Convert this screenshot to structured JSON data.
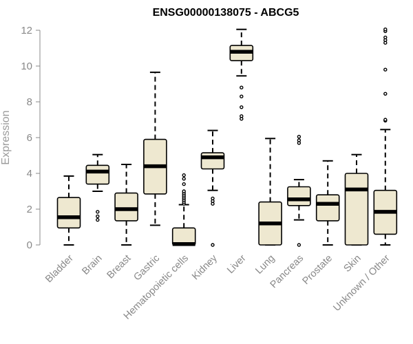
{
  "chart_data": {
    "type": "boxplot",
    "title": "ENSG00000138075 - ABCG5",
    "xlabel": "",
    "ylabel": "Expression",
    "ylim": [
      0,
      12
    ],
    "yticks": [
      0,
      2,
      4,
      6,
      8,
      10,
      12
    ],
    "grid": false,
    "legend": "none",
    "colors": {
      "box_fill": "#eee8d0",
      "stroke": "#000000",
      "axis": "#888888"
    },
    "categories": [
      "Bladder",
      "Brain",
      "Breast",
      "Gastric",
      "Hematopoietic cells",
      "Kidney",
      "Liver",
      "Lung",
      "Pancreas",
      "Prostate",
      "Skin",
      "Unknown / Other"
    ],
    "boxes": [
      {
        "category": "Bladder",
        "whisker_low": 0.0,
        "q1": 0.95,
        "median": 1.55,
        "q3": 2.65,
        "whisker_high": 3.85,
        "outliers": []
      },
      {
        "category": "Brain",
        "whisker_low": 3.0,
        "q1": 3.4,
        "median": 4.1,
        "q3": 4.45,
        "whisker_high": 5.05,
        "outliers": [
          1.4,
          1.6,
          1.85
        ]
      },
      {
        "category": "Breast",
        "whisker_low": 0.0,
        "q1": 1.35,
        "median": 2.0,
        "q3": 2.9,
        "whisker_high": 4.5,
        "outliers": []
      },
      {
        "category": "Gastric",
        "whisker_low": 1.1,
        "q1": 2.85,
        "median": 4.4,
        "q3": 5.9,
        "whisker_high": 9.65,
        "outliers": []
      },
      {
        "category": "Hematopoietic cells",
        "whisker_low": 0.0,
        "q1": 0.0,
        "median": 0.05,
        "q3": 0.95,
        "whisker_high": 2.25,
        "outliers": [
          2.3,
          2.4,
          2.5,
          2.6,
          2.7,
          2.8,
          2.9,
          3.0,
          3.4,
          3.7,
          3.9
        ]
      },
      {
        "category": "Kidney",
        "whisker_low": 3.05,
        "q1": 4.25,
        "median": 4.9,
        "q3": 5.15,
        "whisker_high": 6.4,
        "outliers": [
          2.3,
          2.45,
          2.6,
          0.0
        ]
      },
      {
        "category": "Liver",
        "whisker_low": 9.45,
        "q1": 10.3,
        "median": 10.8,
        "q3": 11.15,
        "whisker_high": 12.05,
        "outliers": [
          8.8,
          8.3,
          7.7,
          7.2,
          7.05
        ]
      },
      {
        "category": "Lung",
        "whisker_low": 0.0,
        "q1": 0.0,
        "median": 1.2,
        "q3": 2.4,
        "whisker_high": 5.95,
        "outliers": []
      },
      {
        "category": "Pancreas",
        "whisker_low": 1.4,
        "q1": 2.2,
        "median": 2.55,
        "q3": 3.25,
        "whisker_high": 3.65,
        "outliers": [
          5.7,
          5.85,
          6.05,
          0.0
        ]
      },
      {
        "category": "Prostate",
        "whisker_low": 0.0,
        "q1": 1.35,
        "median": 2.3,
        "q3": 2.8,
        "whisker_high": 4.7,
        "outliers": []
      },
      {
        "category": "Skin",
        "whisker_low": 0.0,
        "q1": 0.0,
        "median": 3.1,
        "q3": 4.0,
        "whisker_high": 5.05,
        "outliers": []
      },
      {
        "category": "Unknown / Other",
        "whisker_low": 0.0,
        "q1": 0.6,
        "median": 1.85,
        "q3": 3.05,
        "whisker_high": 6.45,
        "outliers": [
          6.95,
          7.0,
          8.45,
          9.8,
          11.3,
          11.45,
          11.6,
          11.95,
          12.05
        ]
      }
    ]
  }
}
